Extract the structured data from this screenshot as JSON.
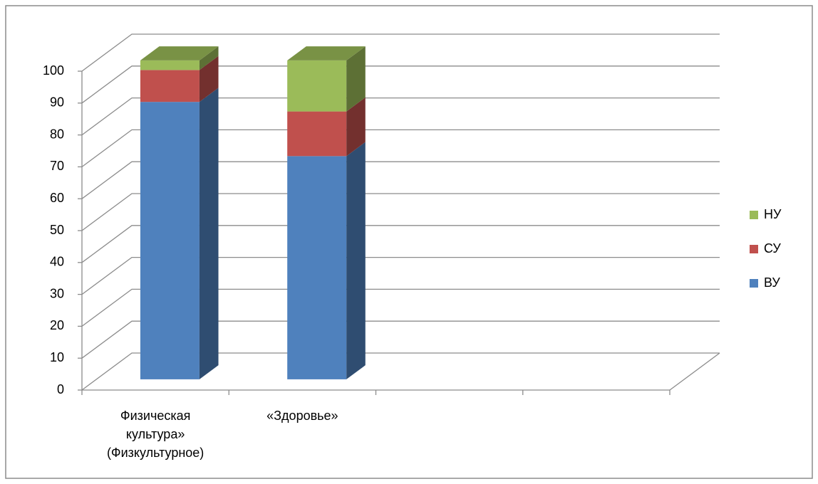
{
  "chart_data": {
    "type": "bar3d_stacked",
    "categories": [
      "Физическая культура» (Физкультурное)",
      "«Здоровье»",
      null,
      null
    ],
    "series": [
      {
        "name": "ВУ",
        "color": "#4f81bd",
        "values": [
          87,
          70,
          null,
          null
        ]
      },
      {
        "name": "СУ",
        "color": "#c0504d",
        "values": [
          10,
          14,
          null,
          null
        ]
      },
      {
        "name": "НУ",
        "color": "#9bbb59",
        "values": [
          3,
          16,
          null,
          null
        ]
      }
    ],
    "ylim": [
      0,
      100
    ],
    "yticks": [
      0,
      10,
      20,
      30,
      40,
      50,
      60,
      70,
      80,
      90,
      100
    ],
    "grid": true,
    "legend": "right"
  }
}
